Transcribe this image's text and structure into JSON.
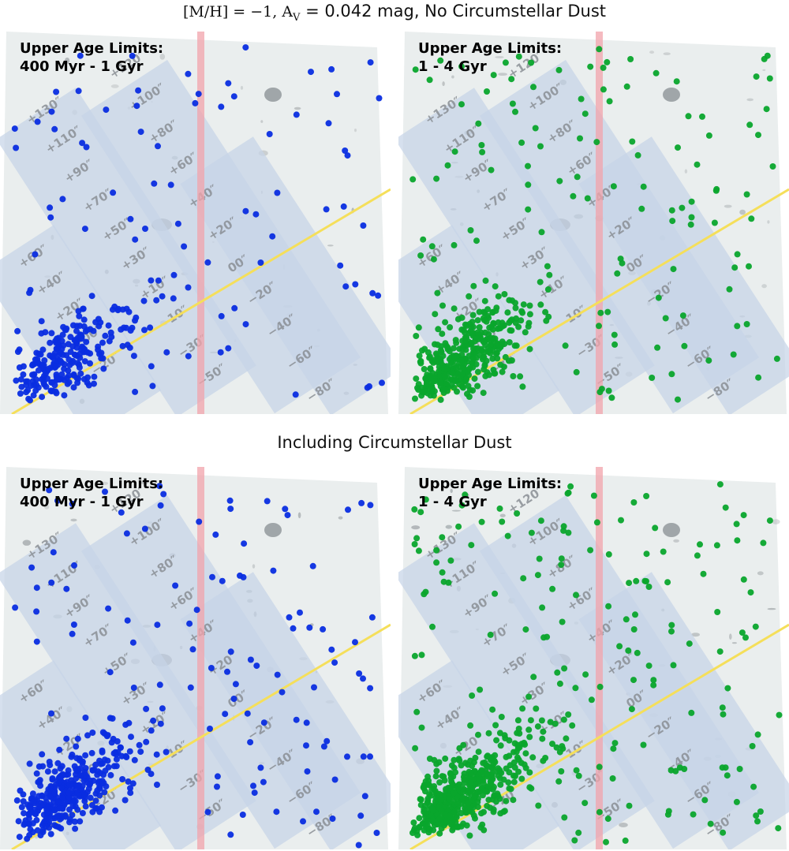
{
  "figure": {
    "top_title": {
      "math": "[M/H] = −1, A",
      "sub": "V",
      "rest": " = 0.042 mag, No Circumstellar Dust"
    },
    "bottom_title": "Including Circumstellar Dust",
    "colors": {
      "young": "#0a2de0",
      "old": "#0aa52c",
      "strip": "#c6d4e8",
      "slit": "#f2a3ab",
      "axis_line": "#f5df5a",
      "background_image": "#eaeeee"
    },
    "strip_labels_upper": [
      "+130″",
      "+110″",
      "+90″",
      "+70″",
      "+50″",
      "+30″",
      "+10″",
      "−10″",
      "−30″",
      "−50″"
    ],
    "strip_labels_middle": [
      "+120″",
      "+100″",
      "+80″",
      "+60″",
      "+40″",
      "+20″",
      "00″",
      "−20″",
      "−40″",
      "−60″",
      "−80″"
    ],
    "strip_labels_left": [
      "+60″",
      "+40″",
      "+20″",
      "+00″",
      "−20″"
    ],
    "panels": [
      {
        "id": "tl",
        "label_line1": "Upper Age Limits:",
        "label_line2": "400 Myr - 1 Gyr",
        "group": "young",
        "density": 1.0
      },
      {
        "id": "tr",
        "label_line1": "Upper Age Limits:",
        "label_line2": "1 - 4 Gyr",
        "group": "old",
        "density": 1.6
      },
      {
        "id": "bl",
        "label_line1": "Upper Age Limits:",
        "label_line2": "400 Myr - 1 Gyr",
        "group": "young",
        "density": 1.5
      },
      {
        "id": "br",
        "label_line1": "Upper Age Limits:",
        "label_line2": "1 - 4 Gyr",
        "group": "old",
        "density": 2.0
      }
    ]
  }
}
